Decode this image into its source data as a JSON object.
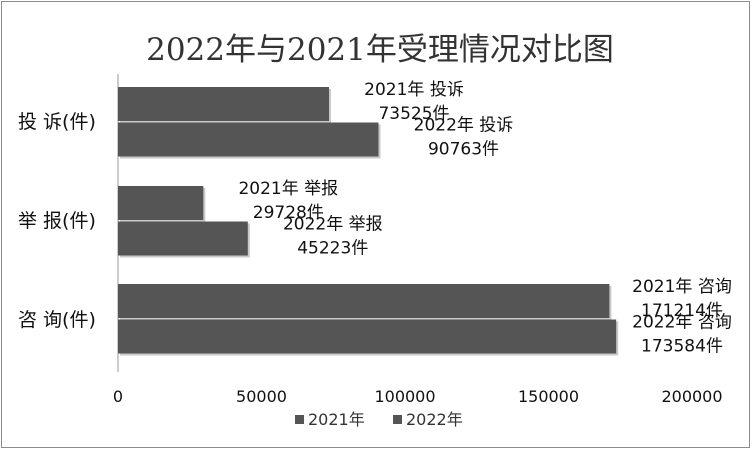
{
  "chart_data": {
    "type": "bar",
    "orientation": "horizontal",
    "title": "2022年与2021年受理情况对比图",
    "categories": [
      "投 诉(件)",
      "举 报(件)",
      "咨 询(件)"
    ],
    "series": [
      {
        "name": "2021年",
        "values": [
          73525,
          29728,
          171214
        ],
        "color": "#555555"
      },
      {
        "name": "2022年",
        "values": [
          90763,
          45223,
          173584
        ],
        "color": "#555555"
      }
    ],
    "data_labels": [
      [
        {
          "line1": "2021年 投诉",
          "line2": "73525件"
        },
        {
          "line1": "2021年 举报",
          "line2": "29728件"
        },
        {
          "line1": "2021年 咨询",
          "line2": "171214件"
        }
      ],
      [
        {
          "line1": "2022年 投诉",
          "line2": "90763件"
        },
        {
          "line1": "2022年 举报",
          "line2": "45223件"
        },
        {
          "line1": "2022年 咨询",
          "line2": "173584件"
        }
      ]
    ],
    "xlim": [
      0,
      200000
    ],
    "xticks": [
      "0",
      "50000",
      "100000",
      "150000",
      "200000"
    ],
    "xtick_values": [
      0,
      50000,
      100000,
      150000,
      200000
    ],
    "grid": false,
    "legend_position": "bottom"
  }
}
